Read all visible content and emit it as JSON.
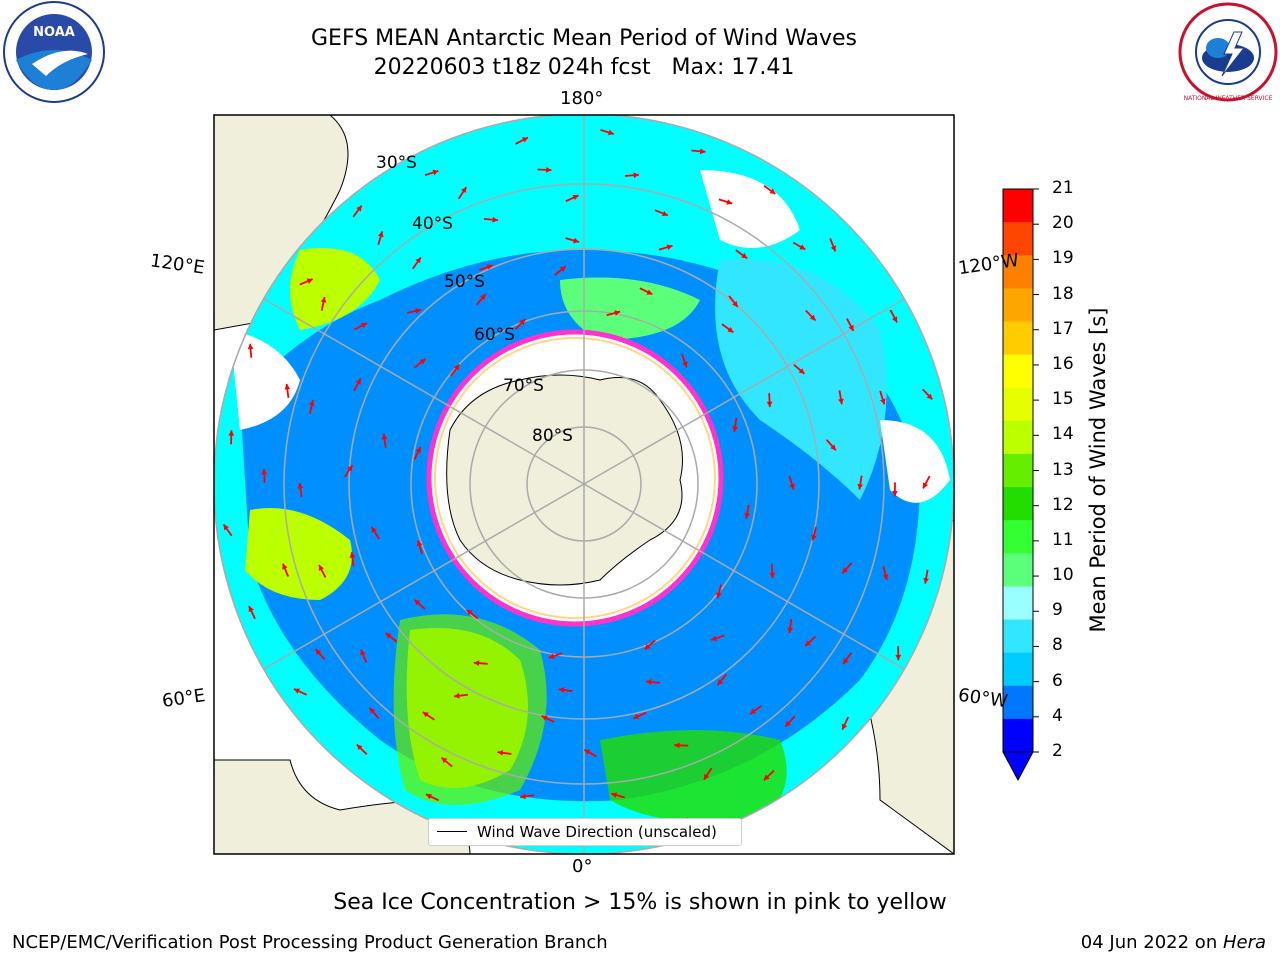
{
  "header": {
    "title": "GEFS MEAN Antarctic Mean Period of Wind Waves",
    "subtitle": "20220603 t18z 024h fcst   Max: 17.41"
  },
  "logos": {
    "left": {
      "name": "noaa-logo",
      "text": "NOAA"
    },
    "right": {
      "name": "national-weather-service-logo",
      "text": "NATIONAL WEATHER SERVICE"
    }
  },
  "map": {
    "projection": "south-polar-stereographic",
    "longitude_labels": {
      "top": "180°",
      "bottom": "0°",
      "upper_left": "120°E",
      "upper_right": "120°W",
      "lower_left": "60°E",
      "lower_right": "60°W"
    },
    "latitude_labels": [
      "30°S",
      "40°S",
      "50°S",
      "60°S",
      "70°S",
      "80°S"
    ],
    "legend_label": "Wind Wave Direction (unscaled)",
    "arrow_color": "#ff0000",
    "land_color": "#efefdc",
    "ice_edge_color": "#ff33cc"
  },
  "colorbar": {
    "label": "Mean Period of Wind Waves [s]",
    "ticks": [
      "2",
      "4",
      "6",
      "8",
      "9",
      "10",
      "11",
      "12",
      "13",
      "14",
      "15",
      "16",
      "17",
      "18",
      "19",
      "20",
      "21"
    ],
    "colors": [
      "#0000ff",
      "#0077ff",
      "#00ccff",
      "#33e6ff",
      "#99ffff",
      "#5cff7a",
      "#33ff33",
      "#22dd00",
      "#66ee00",
      "#bbff00",
      "#e6ff00",
      "#ffff00",
      "#ffcc00",
      "#ffa500",
      "#ff8000",
      "#ff4500",
      "#ff0000"
    ]
  },
  "caption": "Sea Ice Concentration > 15% is shown in pink to yellow",
  "footer": {
    "left": "NCEP/EMC/Verification Post Processing Product Generation Branch",
    "right_date": "04 Jun 2022 on ",
    "right_host": "Hera"
  }
}
